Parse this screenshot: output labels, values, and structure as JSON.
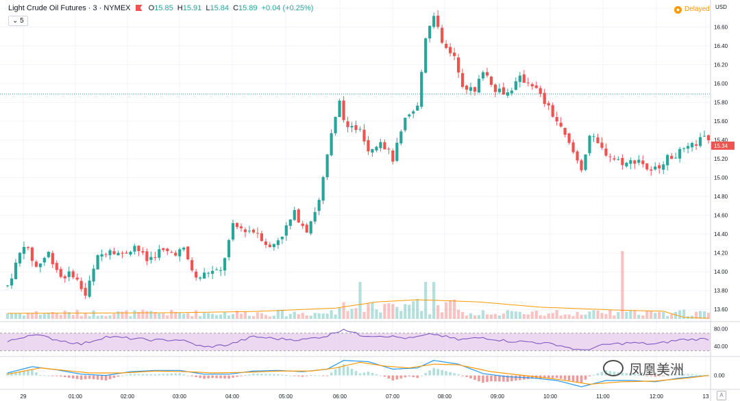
{
  "header": {
    "symbol": "Light Crude Oil Futures · 3 · NYMEX",
    "o_label": "O",
    "o_value": "15.85",
    "h_label": "H",
    "h_value": "15.91",
    "l_label": "L",
    "l_value": "15.84",
    "c_label": "C",
    "c_value": "15.89",
    "change": "+0.04 (+0.25%)",
    "interval": "5",
    "delayed": "Delayed",
    "currency": "USD",
    "auto_scale": "A"
  },
  "watermark": "凤凰美洲",
  "colors": {
    "up": "#26a69a",
    "down": "#ef5350",
    "rsi_line": "#7e57c2",
    "rsi_band": "#e1bee7",
    "macd": "#2196f3",
    "signal": "#ff9800",
    "volume_ma": "#ff9800",
    "last_price_bg": "#ef5350",
    "ref_line": "#26a69a"
  },
  "chart_data": {
    "type": "candlestick",
    "ylim": [
      13.5,
      16.8
    ],
    "y_ticks": [
      "16.80",
      "16.60",
      "16.40",
      "16.20",
      "16.00",
      "15.80",
      "15.60",
      "15.40",
      "15.20",
      "15.00",
      "14.80",
      "14.60",
      "14.40",
      "14.20",
      "14.00",
      "13.80",
      "13.60"
    ],
    "x_ticks": [
      "29",
      "01:00",
      "02:00",
      "03:00",
      "04:00",
      "05:00",
      "06:00",
      "07:00",
      "08:00",
      "09:00",
      "10:00",
      "11:00",
      "12:00",
      "13"
    ],
    "last_price": "15.34",
    "last_price_value": 15.34,
    "reference_line": 15.89,
    "price_path": [
      [
        0,
        13.85
      ],
      [
        4,
        14.3
      ],
      [
        7,
        14.05
      ],
      [
        10,
        14.2
      ],
      [
        13,
        13.95
      ],
      [
        16,
        13.98
      ],
      [
        19,
        13.75
      ],
      [
        22,
        14.15
      ],
      [
        25,
        14.25
      ],
      [
        28,
        14.18
      ],
      [
        31,
        14.28
      ],
      [
        34,
        14.12
      ],
      [
        37,
        14.22
      ],
      [
        40,
        14.2
      ],
      [
        43,
        14.23
      ],
      [
        46,
        13.92
      ],
      [
        49,
        14.0
      ],
      [
        52,
        14.0
      ],
      [
        55,
        14.48
      ],
      [
        58,
        14.45
      ],
      [
        61,
        14.42
      ],
      [
        64,
        14.25
      ],
      [
        67,
        14.4
      ],
      [
        70,
        14.62
      ],
      [
        73,
        14.45
      ],
      [
        76,
        14.75
      ],
      [
        79,
        15.45
      ],
      [
        81,
        15.8
      ],
      [
        83,
        15.5
      ],
      [
        86,
        15.55
      ],
      [
        88,
        15.3
      ],
      [
        91,
        15.4
      ],
      [
        94,
        15.2
      ],
      [
        97,
        15.6
      ],
      [
        100,
        15.75
      ],
      [
        102,
        16.5
      ],
      [
        104,
        16.75
      ],
      [
        106,
        16.4
      ],
      [
        109,
        16.3
      ],
      [
        111,
        16.0
      ],
      [
        114,
        15.9
      ],
      [
        116,
        16.15
      ],
      [
        119,
        15.95
      ],
      [
        122,
        15.9
      ],
      [
        125,
        16.05
      ],
      [
        128,
        16.0
      ],
      [
        131,
        15.8
      ],
      [
        134,
        15.6
      ],
      [
        137,
        15.35
      ],
      [
        140,
        15.1
      ],
      [
        142,
        15.45
      ],
      [
        145,
        15.3
      ],
      [
        148,
        15.2
      ],
      [
        151,
        15.15
      ],
      [
        154,
        15.2
      ],
      [
        157,
        15.05
      ],
      [
        160,
        15.18
      ],
      [
        163,
        15.25
      ],
      [
        166,
        15.3
      ],
      [
        169,
        15.4
      ],
      [
        171,
        15.42
      ]
    ],
    "volume_ma": [
      [
        0,
        0.18
      ],
      [
        40,
        0.2
      ],
      [
        60,
        0.24
      ],
      [
        80,
        0.35
      ],
      [
        90,
        0.55
      ],
      [
        100,
        0.62
      ],
      [
        105,
        0.6
      ],
      [
        115,
        0.55
      ],
      [
        130,
        0.38
      ],
      [
        150,
        0.28
      ],
      [
        160,
        0.25
      ],
      [
        165,
        0.05
      ],
      [
        171,
        0.02
      ]
    ],
    "rsi_ylim": [
      20,
      90
    ],
    "rsi_ticks": [
      "80.00",
      "40.00"
    ],
    "rsi_band": [
      70,
      30
    ],
    "rsi_path": [
      [
        0,
        50
      ],
      [
        6,
        68
      ],
      [
        12,
        55
      ],
      [
        18,
        45
      ],
      [
        24,
        62
      ],
      [
        30,
        58
      ],
      [
        36,
        54
      ],
      [
        42,
        55
      ],
      [
        48,
        38
      ],
      [
        54,
        44
      ],
      [
        60,
        62
      ],
      [
        66,
        57
      ],
      [
        72,
        55
      ],
      [
        78,
        64
      ],
      [
        82,
        80
      ],
      [
        86,
        65
      ],
      [
        92,
        64
      ],
      [
        98,
        58
      ],
      [
        104,
        68
      ],
      [
        110,
        55
      ],
      [
        116,
        60
      ],
      [
        122,
        52
      ],
      [
        128,
        50
      ],
      [
        134,
        44
      ],
      [
        140,
        30
      ],
      [
        146,
        44
      ],
      [
        152,
        48
      ],
      [
        158,
        45
      ],
      [
        164,
        55
      ],
      [
        171,
        57
      ]
    ],
    "macd_ylim": [
      -0.1,
      0.14
    ],
    "macd_ticks": [
      "0.00"
    ],
    "macd_path": [
      [
        0,
        0.02
      ],
      [
        6,
        0.07
      ],
      [
        12,
        0.045
      ],
      [
        18,
        0.01
      ],
      [
        24,
        0.0
      ],
      [
        30,
        0.03
      ],
      [
        36,
        0.04
      ],
      [
        42,
        0.04
      ],
      [
        48,
        0.01
      ],
      [
        54,
        0.01
      ],
      [
        60,
        0.035
      ],
      [
        66,
        0.04
      ],
      [
        72,
        0.03
      ],
      [
        78,
        0.05
      ],
      [
        82,
        0.12
      ],
      [
        88,
        0.11
      ],
      [
        94,
        0.05
      ],
      [
        100,
        0.06
      ],
      [
        104,
        0.12
      ],
      [
        110,
        0.09
      ],
      [
        116,
        0.015
      ],
      [
        122,
        -0.01
      ],
      [
        128,
        -0.02
      ],
      [
        134,
        -0.04
      ],
      [
        140,
        -0.09
      ],
      [
        146,
        -0.04
      ],
      [
        152,
        -0.04
      ],
      [
        158,
        -0.05
      ],
      [
        164,
        -0.02
      ],
      [
        171,
        0.0
      ]
    ],
    "signal_path": [
      [
        0,
        0.01
      ],
      [
        8,
        0.06
      ],
      [
        14,
        0.04
      ],
      [
        20,
        0.02
      ],
      [
        28,
        0.02
      ],
      [
        36,
        0.035
      ],
      [
        44,
        0.03
      ],
      [
        50,
        0.02
      ],
      [
        58,
        0.025
      ],
      [
        66,
        0.035
      ],
      [
        74,
        0.035
      ],
      [
        80,
        0.06
      ],
      [
        86,
        0.105
      ],
      [
        92,
        0.075
      ],
      [
        98,
        0.06
      ],
      [
        104,
        0.09
      ],
      [
        110,
        0.085
      ],
      [
        118,
        0.03
      ],
      [
        126,
        0.0
      ],
      [
        134,
        -0.03
      ],
      [
        142,
        -0.07
      ],
      [
        150,
        -0.05
      ],
      [
        158,
        -0.045
      ],
      [
        166,
        -0.02
      ],
      [
        171,
        0.0
      ]
    ]
  }
}
